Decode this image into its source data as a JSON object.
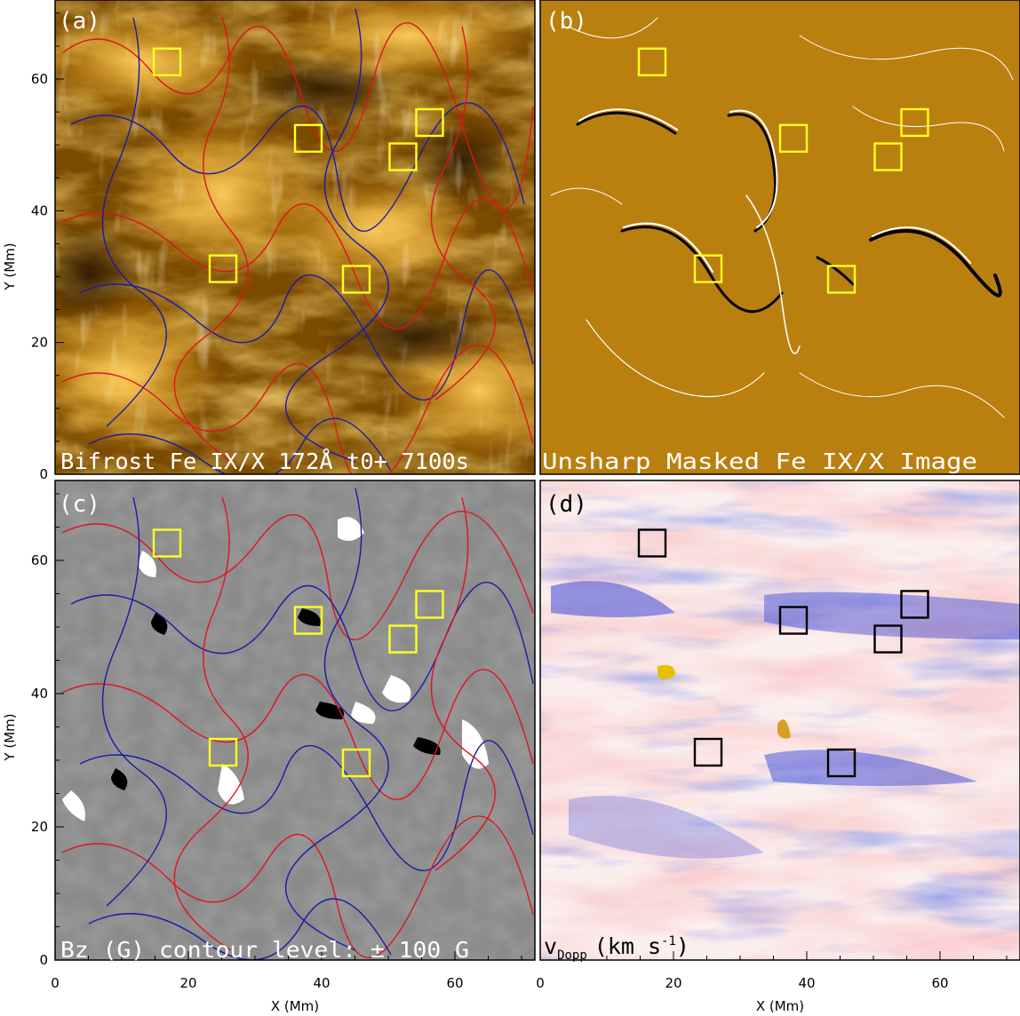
{
  "panels": [
    {
      "id": "a",
      "tag": "(a)",
      "caption": "Bifrost Fe IX/X 172Å   t0+ 7100s"
    },
    {
      "id": "b",
      "tag": "(b)",
      "caption": "Unsharp Masked Fe IX/X Image"
    },
    {
      "id": "c",
      "tag": "(c)",
      "caption": "Bz (G) contour level: ± 100 G"
    },
    {
      "id": "d",
      "tag": "(d)",
      "caption_main": "v",
      "caption_sub": "Dopp",
      "caption_unit": "(km s",
      "caption_sup": "-1",
      "caption_end": ")"
    }
  ],
  "axes": {
    "xlabel": "X (Mm)",
    "ylabel": "Y (Mm)",
    "x_ticks": [
      "0",
      "20",
      "40",
      "60"
    ],
    "y_ticks": [
      "0",
      "20",
      "40",
      "60"
    ],
    "x_range": [
      0,
      72
    ],
    "y_range": [
      0,
      72
    ]
  },
  "boxes_mm": [
    {
      "x": 16.8,
      "y": 62.6
    },
    {
      "x": 38.0,
      "y": 51.0
    },
    {
      "x": 56.2,
      "y": 53.4
    },
    {
      "x": 52.2,
      "y": 48.2
    },
    {
      "x": 25.2,
      "y": 31.2
    },
    {
      "x": 45.2,
      "y": 29.6
    }
  ],
  "colors": {
    "aia_dark": "#3a2200",
    "aia_mid": "#a86a00",
    "aia_bright": "#ffc84a",
    "unsharp_bg": "#b98010",
    "bz_gray": "#8a8a8a",
    "contour_pos": "#e0141e",
    "contour_neg": "#1a1aa8",
    "box_yellow": "#ffff20",
    "box_black": "#000000",
    "doppler_red": "#f2a9a9",
    "doppler_blue": "#3040d8"
  }
}
